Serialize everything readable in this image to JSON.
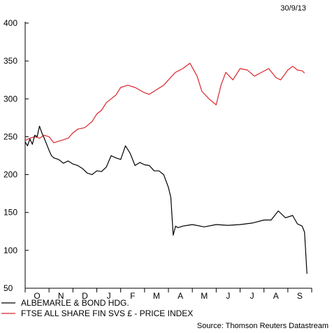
{
  "chart_data": {
    "type": "line",
    "date": "30/9/13",
    "source": "Source: Thomson Reuters Datastream",
    "ylim": [
      50,
      400
    ],
    "yticks": [
      50,
      100,
      150,
      200,
      250,
      300,
      350,
      400
    ],
    "month_labels": [
      "O",
      "N",
      "D",
      "J",
      "F",
      "M",
      "A",
      "M",
      "J",
      "J",
      "A",
      "S"
    ],
    "legend_position": "bottom-left",
    "grid": false,
    "series": [
      {
        "name": "ALBEMARLE & BOND HDG.",
        "color": "#000000",
        "x": [
          0,
          0.1,
          0.2,
          0.3,
          0.4,
          0.5,
          0.6,
          0.7,
          0.8,
          0.9,
          1.0,
          1.1,
          1.2,
          1.4,
          1.6,
          1.8,
          2.0,
          2.2,
          2.4,
          2.6,
          2.8,
          3.0,
          3.2,
          3.4,
          3.6,
          3.8,
          4.0,
          4.2,
          4.4,
          4.6,
          4.8,
          5.0,
          5.2,
          5.4,
          5.6,
          5.8,
          6.0,
          6.1,
          6.2,
          6.3,
          6.4,
          6.6,
          6.8,
          7.0,
          7.5,
          8.0,
          8.5,
          9.0,
          9.5,
          10.0,
          10.3,
          10.6,
          10.9,
          11.2,
          11.4,
          11.6,
          11.7,
          11.8
        ],
        "values": [
          243,
          238,
          247,
          240,
          252,
          250,
          264,
          255,
          248,
          240,
          232,
          225,
          222,
          220,
          215,
          218,
          214,
          212,
          208,
          202,
          200,
          205,
          204,
          210,
          225,
          222,
          220,
          238,
          228,
          212,
          216,
          213,
          212,
          205,
          205,
          200,
          183,
          170,
          120,
          132,
          130,
          132,
          133,
          134,
          131,
          134,
          133,
          134,
          136,
          140,
          140,
          152,
          143,
          146,
          135,
          132,
          124,
          69
        ]
      },
      {
        "name": "FTSE ALL SHARE FIN SVS £ - PRICE INDEX",
        "color": "#d8262c",
        "x": [
          0,
          0.2,
          0.4,
          0.6,
          0.8,
          1.0,
          1.2,
          1.5,
          1.8,
          2.0,
          2.2,
          2.5,
          2.8,
          3.0,
          3.2,
          3.4,
          3.6,
          3.8,
          4.0,
          4.3,
          4.6,
          5.0,
          5.2,
          5.5,
          5.8,
          6.0,
          6.3,
          6.6,
          6.9,
          7.2,
          7.4,
          7.7,
          8.0,
          8.2,
          8.4,
          8.7,
          9.0,
          9.3,
          9.6,
          9.9,
          10.2,
          10.5,
          10.7,
          11.0,
          11.2,
          11.4,
          11.6,
          11.7
        ],
        "values": [
          245,
          248,
          250,
          248,
          252,
          250,
          242,
          245,
          248,
          255,
          260,
          262,
          270,
          280,
          285,
          295,
          300,
          305,
          315,
          318,
          315,
          308,
          306,
          312,
          318,
          325,
          335,
          340,
          347,
          330,
          310,
          300,
          292,
          318,
          335,
          325,
          340,
          338,
          330,
          335,
          340,
          328,
          325,
          338,
          343,
          338,
          337,
          334
        ]
      }
    ]
  }
}
